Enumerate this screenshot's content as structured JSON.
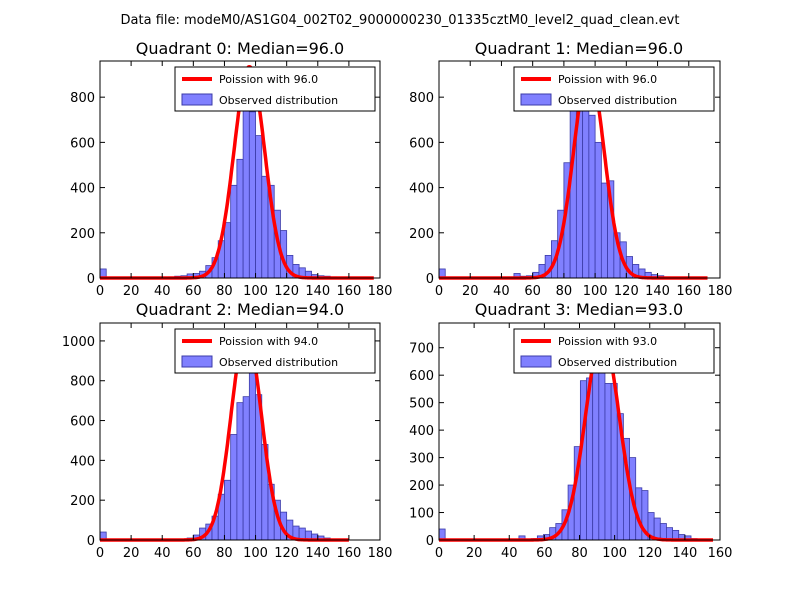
{
  "figure_title": "Data file: modeM0/AS1G04_002T02_9000000230_01335cztM0_level2_quad_clean.evt",
  "colors": {
    "bar_fill": "#8080ff",
    "bar_edge": "#3b3ba8",
    "curve": "#ff0000",
    "axes": "#000000"
  },
  "chart_data": [
    {
      "type": "bar",
      "title": "Quadrant 0: Median=96.0",
      "xlim": [
        0,
        180
      ],
      "ylim": [
        0,
        960
      ],
      "xticks": [
        0,
        20,
        40,
        60,
        80,
        100,
        120,
        140,
        160,
        180
      ],
      "yticks": [
        0,
        200,
        400,
        600,
        800
      ],
      "bin_width": 4,
      "bins": [
        [
          0,
          40
        ],
        [
          4,
          4
        ],
        [
          8,
          3
        ],
        [
          12,
          3
        ],
        [
          16,
          3
        ],
        [
          20,
          3
        ],
        [
          24,
          3
        ],
        [
          28,
          3
        ],
        [
          32,
          3
        ],
        [
          36,
          3
        ],
        [
          40,
          3
        ],
        [
          44,
          5
        ],
        [
          48,
          8
        ],
        [
          52,
          10
        ],
        [
          56,
          18
        ],
        [
          60,
          20
        ],
        [
          64,
          30
        ],
        [
          68,
          55
        ],
        [
          72,
          90
        ],
        [
          76,
          165
        ],
        [
          80,
          245
        ],
        [
          84,
          410
        ],
        [
          88,
          525
        ],
        [
          92,
          745
        ],
        [
          96,
          735
        ],
        [
          100,
          630
        ],
        [
          104,
          450
        ],
        [
          108,
          410
        ],
        [
          112,
          300
        ],
        [
          116,
          210
        ],
        [
          120,
          100
        ],
        [
          124,
          60
        ],
        [
          128,
          45
        ],
        [
          132,
          30
        ],
        [
          136,
          15
        ],
        [
          140,
          10
        ],
        [
          144,
          8
        ],
        [
          148,
          5
        ]
      ],
      "curve": {
        "label": "Poission with 96.0",
        "mean": 96.0,
        "peak": 935,
        "sigma": 9.8,
        "xmin": 0,
        "xmax": 176
      },
      "legend": {
        "curve": "Poission with 96.0",
        "bars": "Observed distribution"
      }
    },
    {
      "type": "bar",
      "title": "Quadrant 1: Median=96.0",
      "xlim": [
        0,
        180
      ],
      "ylim": [
        0,
        960
      ],
      "xticks": [
        0,
        20,
        40,
        60,
        80,
        100,
        120,
        140,
        160,
        180
      ],
      "yticks": [
        0,
        200,
        400,
        600,
        800
      ],
      "bin_width": 4,
      "bins": [
        [
          0,
          40
        ],
        [
          4,
          4
        ],
        [
          8,
          3
        ],
        [
          12,
          3
        ],
        [
          16,
          3
        ],
        [
          20,
          3
        ],
        [
          24,
          3
        ],
        [
          28,
          3
        ],
        [
          32,
          3
        ],
        [
          36,
          3
        ],
        [
          40,
          3
        ],
        [
          44,
          5
        ],
        [
          48,
          20
        ],
        [
          52,
          8
        ],
        [
          56,
          10
        ],
        [
          60,
          25
        ],
        [
          64,
          60
        ],
        [
          68,
          100
        ],
        [
          72,
          165
        ],
        [
          76,
          300
        ],
        [
          80,
          510
        ],
        [
          84,
          750
        ],
        [
          88,
          830
        ],
        [
          92,
          780
        ],
        [
          96,
          720
        ],
        [
          100,
          600
        ],
        [
          104,
          420
        ],
        [
          108,
          430
        ],
        [
          112,
          200
        ],
        [
          116,
          160
        ],
        [
          120,
          95
        ],
        [
          124,
          60
        ],
        [
          128,
          40
        ],
        [
          132,
          25
        ],
        [
          136,
          15
        ],
        [
          140,
          10
        ],
        [
          144,
          5
        ]
      ],
      "curve": {
        "label": "Poission with 96.0",
        "mean": 96.0,
        "peak": 925,
        "sigma": 9.8,
        "xmin": 0,
        "xmax": 172
      },
      "legend": {
        "curve": "Poission with 96.0",
        "bars": "Observed distribution"
      }
    },
    {
      "type": "bar",
      "title": "Quadrant 2: Median=94.0",
      "xlim": [
        0,
        180
      ],
      "ylim": [
        0,
        1090
      ],
      "xticks": [
        0,
        20,
        40,
        60,
        80,
        100,
        120,
        140,
        160,
        180
      ],
      "yticks": [
        0,
        200,
        400,
        600,
        800,
        1000
      ],
      "bin_width": 4,
      "bins": [
        [
          0,
          40
        ],
        [
          4,
          4
        ],
        [
          8,
          3
        ],
        [
          12,
          3
        ],
        [
          16,
          3
        ],
        [
          20,
          3
        ],
        [
          24,
          3
        ],
        [
          28,
          3
        ],
        [
          32,
          3
        ],
        [
          36,
          3
        ],
        [
          40,
          3
        ],
        [
          44,
          3
        ],
        [
          48,
          3
        ],
        [
          52,
          3
        ],
        [
          56,
          10
        ],
        [
          60,
          25
        ],
        [
          64,
          60
        ],
        [
          68,
          80
        ],
        [
          72,
          120
        ],
        [
          76,
          230
        ],
        [
          80,
          300
        ],
        [
          84,
          530
        ],
        [
          88,
          690
        ],
        [
          92,
          720
        ],
        [
          96,
          1000
        ],
        [
          100,
          730
        ],
        [
          104,
          480
        ],
        [
          108,
          280
        ],
        [
          112,
          200
        ],
        [
          116,
          140
        ],
        [
          120,
          100
        ],
        [
          124,
          70
        ],
        [
          128,
          60
        ],
        [
          132,
          45
        ],
        [
          136,
          30
        ],
        [
          140,
          20
        ],
        [
          144,
          10
        ]
      ],
      "curve": {
        "label": "Poission with 94.0",
        "mean": 94.0,
        "peak": 1045,
        "sigma": 9.7,
        "xmin": 0,
        "xmax": 160
      },
      "legend": {
        "curve": "Poission with 94.0",
        "bars": "Observed distribution"
      }
    },
    {
      "type": "bar",
      "title": "Quadrant 3: Median=93.0",
      "xlim": [
        0,
        160
      ],
      "ylim": [
        0,
        790
      ],
      "xticks": [
        0,
        20,
        40,
        60,
        80,
        100,
        120,
        140,
        160
      ],
      "yticks": [
        0,
        100,
        200,
        300,
        400,
        500,
        600,
        700
      ],
      "bin_width": 3.5,
      "bins": [
        [
          0,
          40
        ],
        [
          3.5,
          3
        ],
        [
          7,
          3
        ],
        [
          10.5,
          3
        ],
        [
          14,
          3
        ],
        [
          17.5,
          3
        ],
        [
          21,
          3
        ],
        [
          24.5,
          3
        ],
        [
          28,
          3
        ],
        [
          31.5,
          3
        ],
        [
          35,
          3
        ],
        [
          38.5,
          3
        ],
        [
          42,
          3
        ],
        [
          45.5,
          15
        ],
        [
          49,
          3
        ],
        [
          52.5,
          5
        ],
        [
          56,
          15
        ],
        [
          59.5,
          20
        ],
        [
          63,
          45
        ],
        [
          66.5,
          60
        ],
        [
          70,
          110
        ],
        [
          73.5,
          200
        ],
        [
          77,
          340
        ],
        [
          80.5,
          580
        ],
        [
          84,
          590
        ],
        [
          87.5,
          620
        ],
        [
          91,
          640
        ],
        [
          94.5,
          570
        ],
        [
          98,
          570
        ],
        [
          101.5,
          460
        ],
        [
          105,
          370
        ],
        [
          108.5,
          300
        ],
        [
          112,
          190
        ],
        [
          115.5,
          180
        ],
        [
          119,
          100
        ],
        [
          122.5,
          80
        ],
        [
          126,
          60
        ],
        [
          129.5,
          45
        ],
        [
          133,
          35
        ],
        [
          136.5,
          20
        ],
        [
          140,
          15
        ],
        [
          143.5,
          5
        ]
      ],
      "curve": {
        "label": "Poission with 93.0",
        "mean": 93.0,
        "peak": 745,
        "sigma": 9.6,
        "xmin": 0,
        "xmax": 156
      },
      "legend": {
        "curve": "Poission with 93.0",
        "bars": "Observed distribution"
      }
    }
  ]
}
